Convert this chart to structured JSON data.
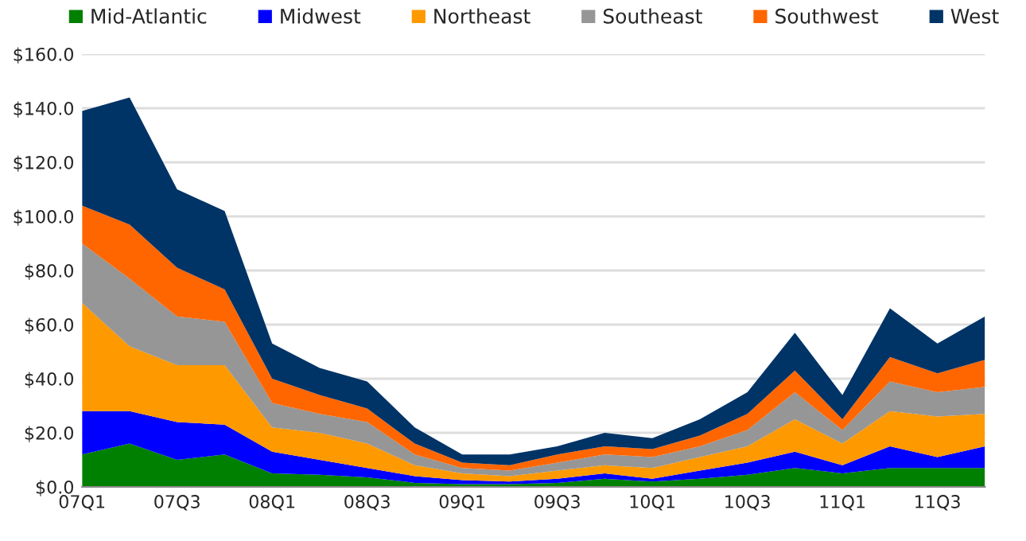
{
  "chart_data": {
    "type": "area",
    "stacked": true,
    "categories": [
      "07Q1",
      null,
      "07Q3",
      null,
      "08Q1",
      null,
      "08Q3",
      null,
      "09Q1",
      null,
      "09Q3",
      null,
      "10Q1",
      null,
      "10Q3",
      null,
      "11Q1",
      null,
      "11Q3",
      null
    ],
    "series": [
      {
        "name": "Mid-Atlantic",
        "color": "#008000",
        "values": [
          12,
          16,
          10,
          12,
          5,
          4.5,
          3.5,
          1.5,
          1,
          1,
          1.5,
          3,
          2,
          3,
          4.5,
          7,
          5,
          7,
          7,
          7
        ]
      },
      {
        "name": "Midwest",
        "color": "#0000ff",
        "values": [
          16,
          12,
          14,
          11,
          8,
          5.5,
          3.5,
          2.5,
          1.5,
          1,
          1.5,
          2,
          1,
          3,
          4.5,
          6,
          3,
          8,
          4,
          8
        ]
      },
      {
        "name": "Northeast",
        "color": "#ff9900",
        "values": [
          40,
          24,
          21,
          22,
          9,
          10,
          9,
          4,
          2.5,
          2,
          3,
          3,
          4,
          5,
          6,
          12,
          8,
          13,
          15,
          12
        ]
      },
      {
        "name": "Southeast",
        "color": "#969696",
        "values": [
          22,
          25,
          18,
          16,
          9,
          7,
          8,
          4,
          2,
          2,
          3,
          4,
          4,
          4,
          6,
          10,
          5,
          11,
          9,
          10
        ]
      },
      {
        "name": "Southwest",
        "color": "#ff6600",
        "values": [
          14,
          20,
          18,
          12,
          9,
          7,
          5,
          4,
          2,
          2,
          3,
          3,
          3,
          4,
          6,
          8,
          4,
          9,
          7,
          10
        ]
      },
      {
        "name": "West",
        "color": "#003366",
        "values": [
          35,
          47,
          29,
          29,
          13,
          10,
          10,
          6,
          3,
          4,
          3,
          5,
          4,
          6,
          8,
          14,
          9,
          18,
          11,
          16
        ]
      }
    ],
    "ylim": [
      0,
      160
    ],
    "yticks": [
      {
        "value": 0,
        "label": "$0.0"
      },
      {
        "value": 20,
        "label": "$20.0"
      },
      {
        "value": 40,
        "label": "$40.0"
      },
      {
        "value": 60,
        "label": "$60.0"
      },
      {
        "value": 80,
        "label": "$80.0"
      },
      {
        "value": 100,
        "label": "$100.0"
      },
      {
        "value": 120,
        "label": "$120.0"
      },
      {
        "value": 140,
        "label": "$140.0"
      },
      {
        "value": 160,
        "label": "$160.0"
      }
    ],
    "grid": "y",
    "legend": "top"
  }
}
